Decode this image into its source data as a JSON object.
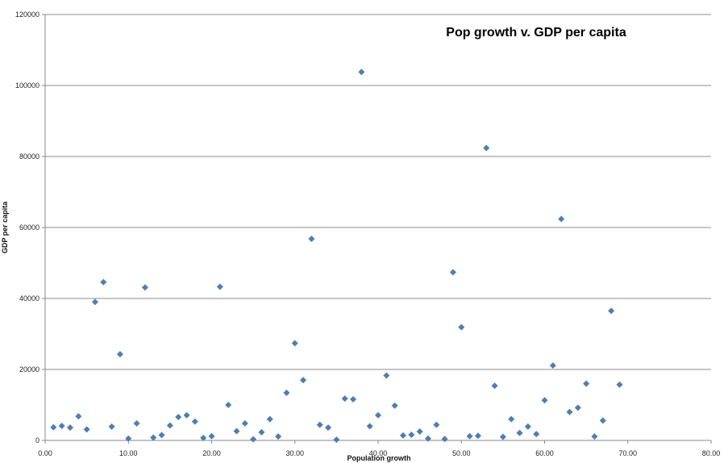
{
  "chart_data": {
    "type": "scatter",
    "title": "Pop growth v. GDP per capita",
    "xlabel": "Population growth",
    "ylabel": "GDP per capita",
    "xlim": [
      0,
      80
    ],
    "ylim": [
      0,
      120000
    ],
    "x_ticks": [
      "0.00",
      "10.00",
      "20.00",
      "30.00",
      "40.00",
      "50.00",
      "60.00",
      "70.00",
      "80.00"
    ],
    "y_ticks": [
      "0",
      "20000",
      "40000",
      "60000",
      "80000",
      "100000",
      "120000"
    ],
    "x_tick_values": [
      0,
      10,
      20,
      30,
      40,
      50,
      60,
      70,
      80
    ],
    "y_tick_values": [
      0,
      20000,
      40000,
      60000,
      80000,
      100000,
      120000
    ],
    "grid": "horizontal",
    "marker": "diamond",
    "marker_color": "#4a7ebb",
    "points": [
      {
        "x": 1,
        "y": 3700
      },
      {
        "x": 2,
        "y": 4100
      },
      {
        "x": 3,
        "y": 3600
      },
      {
        "x": 4,
        "y": 6800
      },
      {
        "x": 5,
        "y": 3100
      },
      {
        "x": 6,
        "y": 39000
      },
      {
        "x": 7,
        "y": 44600
      },
      {
        "x": 8,
        "y": 3900
      },
      {
        "x": 9,
        "y": 24300
      },
      {
        "x": 10,
        "y": 500
      },
      {
        "x": 11,
        "y": 4800
      },
      {
        "x": 12,
        "y": 43100
      },
      {
        "x": 13,
        "y": 800
      },
      {
        "x": 14,
        "y": 1500
      },
      {
        "x": 15,
        "y": 4200
      },
      {
        "x": 16,
        "y": 6600
      },
      {
        "x": 17,
        "y": 7100
      },
      {
        "x": 18,
        "y": 5300
      },
      {
        "x": 19,
        "y": 700
      },
      {
        "x": 20,
        "y": 1200
      },
      {
        "x": 21,
        "y": 43300
      },
      {
        "x": 22,
        "y": 10000
      },
      {
        "x": 23,
        "y": 2600
      },
      {
        "x": 24,
        "y": 4800
      },
      {
        "x": 25,
        "y": 300
      },
      {
        "x": 26,
        "y": 2300
      },
      {
        "x": 27,
        "y": 6000
      },
      {
        "x": 28,
        "y": 1100
      },
      {
        "x": 29,
        "y": 13400
      },
      {
        "x": 30,
        "y": 27400
      },
      {
        "x": 31,
        "y": 17000
      },
      {
        "x": 32,
        "y": 56800
      },
      {
        "x": 33,
        "y": 4400
      },
      {
        "x": 34,
        "y": 3600
      },
      {
        "x": 35,
        "y": 200
      },
      {
        "x": 36,
        "y": 11800
      },
      {
        "x": 37,
        "y": 11600
      },
      {
        "x": 38,
        "y": 103800
      },
      {
        "x": 39,
        "y": 4000
      },
      {
        "x": 40,
        "y": 7100
      },
      {
        "x": 41,
        "y": 18300
      },
      {
        "x": 42,
        "y": 9800
      },
      {
        "x": 43,
        "y": 1400
      },
      {
        "x": 44,
        "y": 1600
      },
      {
        "x": 45,
        "y": 2500
      },
      {
        "x": 46,
        "y": 500
      },
      {
        "x": 47,
        "y": 4400
      },
      {
        "x": 48,
        "y": 400
      },
      {
        "x": 49,
        "y": 47400
      },
      {
        "x": 50,
        "y": 31900
      },
      {
        "x": 51,
        "y": 1200
      },
      {
        "x": 52,
        "y": 1300
      },
      {
        "x": 53,
        "y": 82400
      },
      {
        "x": 54,
        "y": 15400
      },
      {
        "x": 55,
        "y": 1000
      },
      {
        "x": 56,
        "y": 6000
      },
      {
        "x": 57,
        "y": 2100
      },
      {
        "x": 58,
        "y": 3900
      },
      {
        "x": 59,
        "y": 1800
      },
      {
        "x": 60,
        "y": 11300
      },
      {
        "x": 61,
        "y": 21100
      },
      {
        "x": 62,
        "y": 62400
      },
      {
        "x": 63,
        "y": 8000
      },
      {
        "x": 64,
        "y": 9200
      },
      {
        "x": 65,
        "y": 16000
      },
      {
        "x": 66,
        "y": 1100
      },
      {
        "x": 67,
        "y": 5600
      },
      {
        "x": 68,
        "y": 36500
      },
      {
        "x": 69,
        "y": 15700
      }
    ]
  }
}
